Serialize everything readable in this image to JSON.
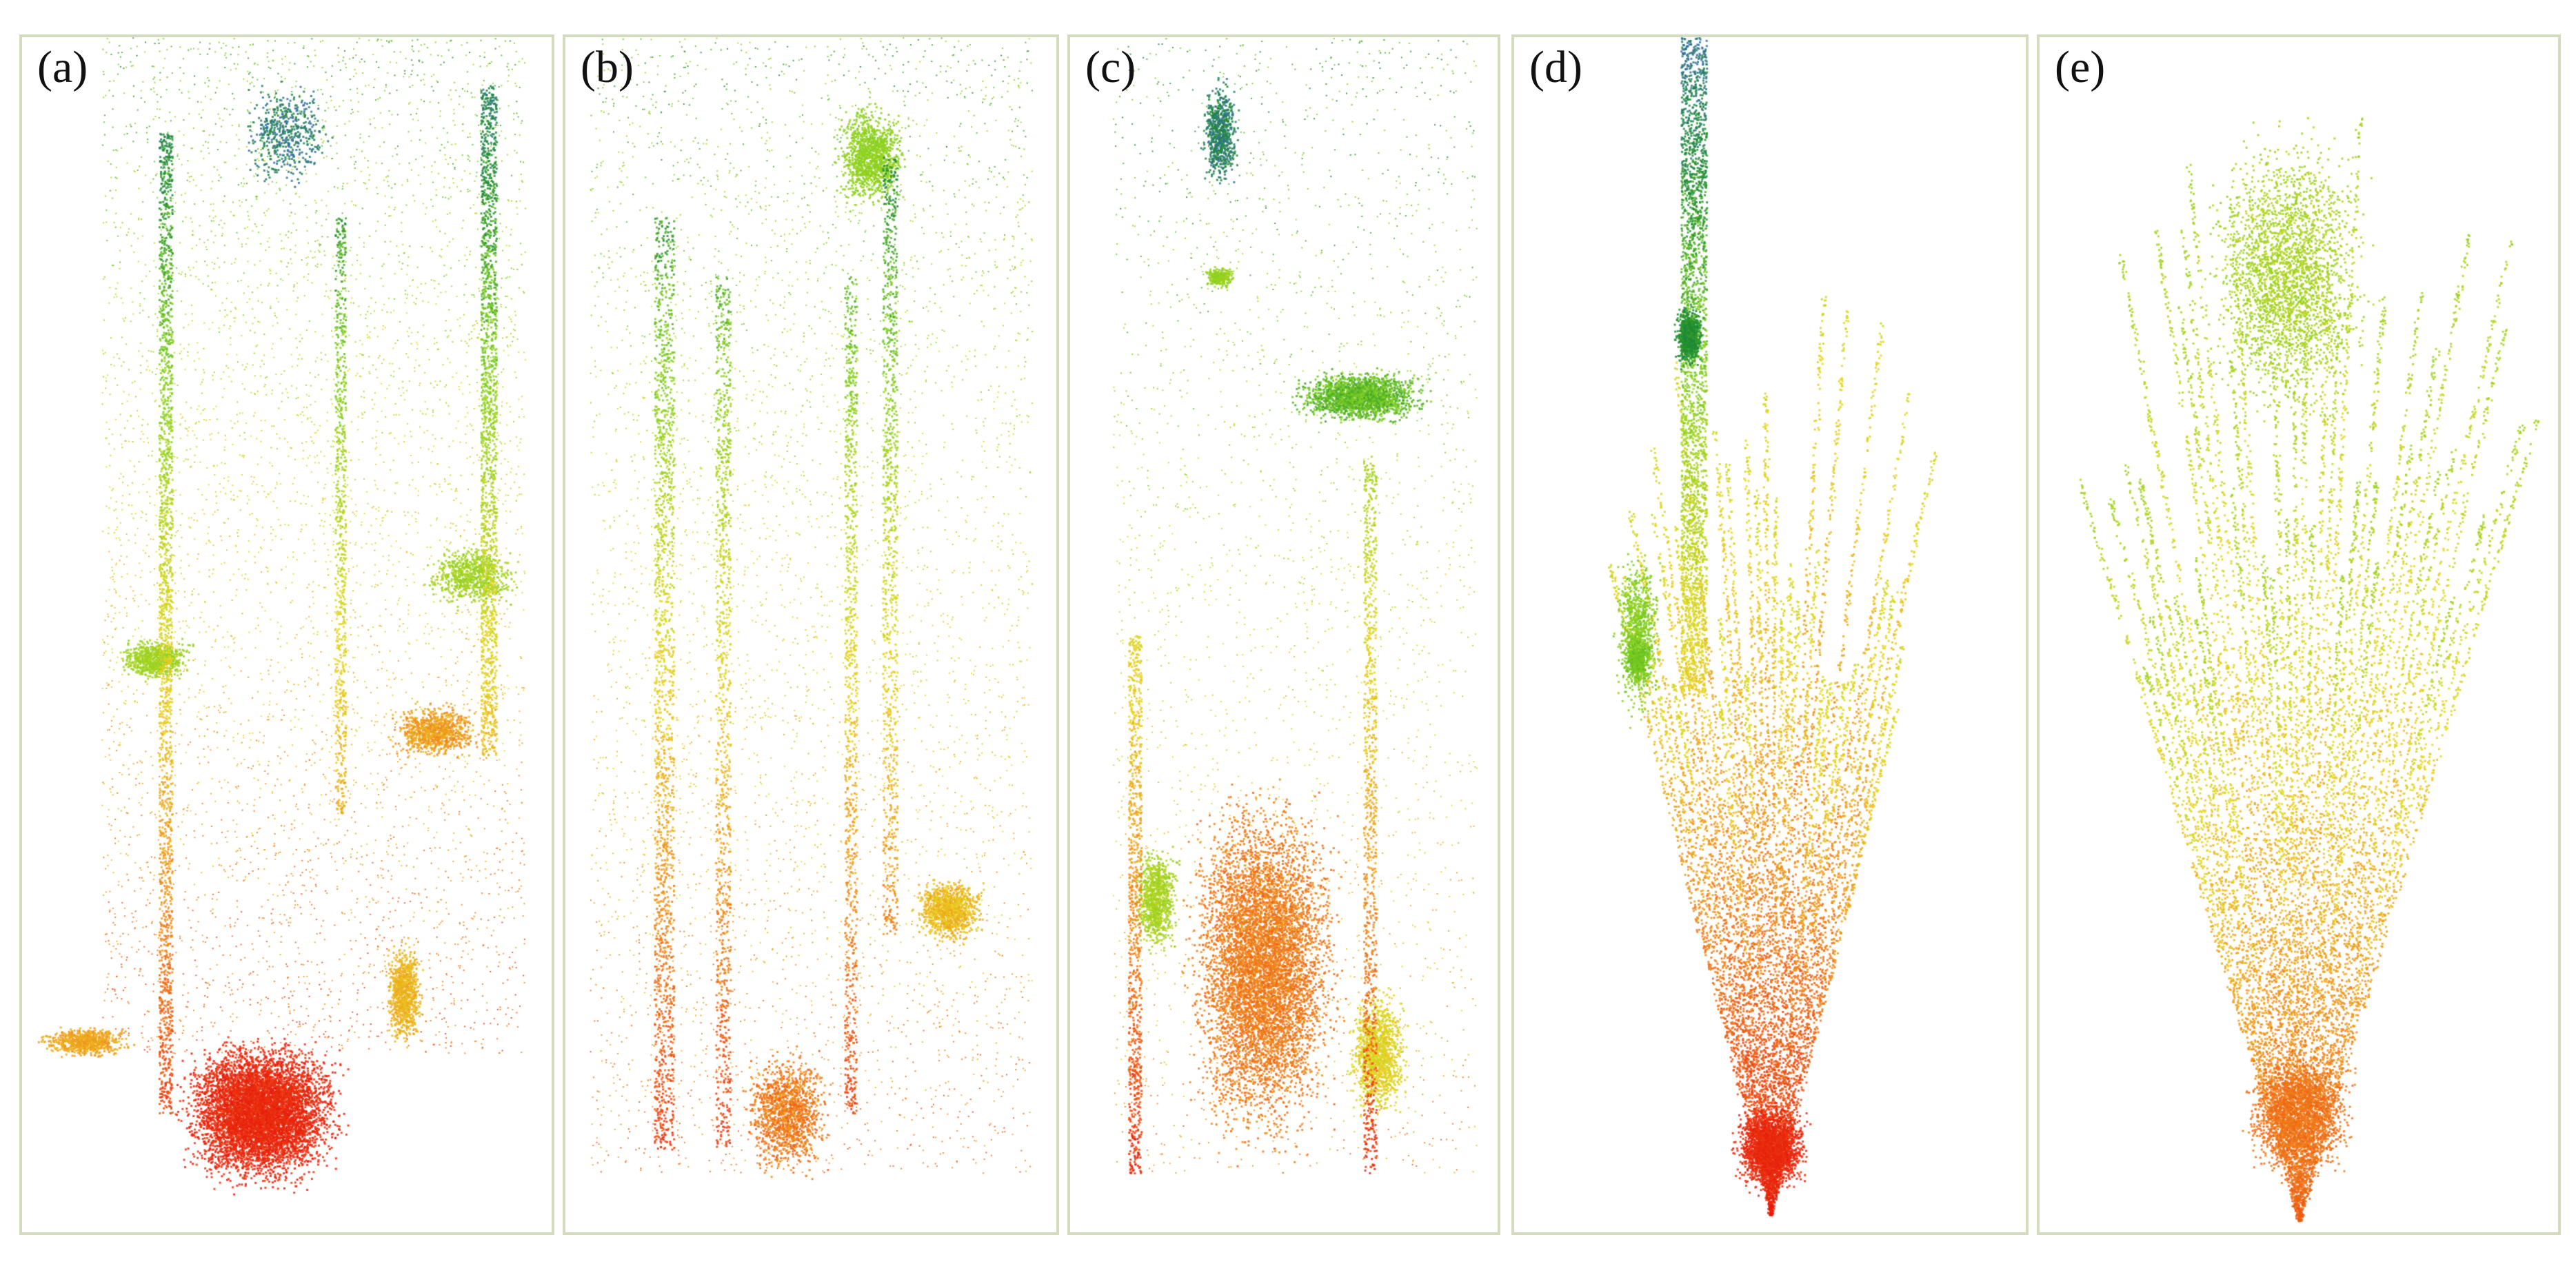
{
  "figure": {
    "panels": [
      {
        "label": "(a)",
        "scene": "pointcloud-a"
      },
      {
        "label": "(b)",
        "scene": "pointcloud-b"
      },
      {
        "label": "(c)",
        "scene": "pointcloud-c"
      },
      {
        "label": "(d)",
        "scene": "pointcloud-d"
      },
      {
        "label": "(e)",
        "scene": "pointcloud-e"
      }
    ],
    "colors": {
      "border": "#d4dcc0",
      "red": "#e8180c",
      "orange": "#f08a1a",
      "yellow": "#e8d820",
      "green": "#7ed020",
      "dark_green": "#1a8a30",
      "blue": "#3a6ab8"
    }
  }
}
